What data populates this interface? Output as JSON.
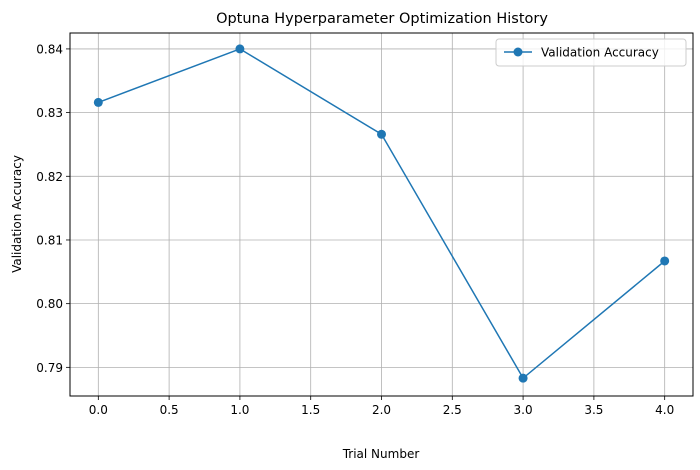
{
  "chart_data": {
    "type": "line",
    "title": "Optuna Hyperparameter Optimization History",
    "xlabel": "Trial Number",
    "ylabel": "Validation Accuracy",
    "xlim": [
      -0.2,
      4.2
    ],
    "ylim": [
      0.7855,
      0.8425
    ],
    "xticks": [
      0.0,
      0.5,
      1.0,
      1.5,
      2.0,
      2.5,
      3.0,
      3.5,
      4.0
    ],
    "xtick_labels": [
      "0.0",
      "0.5",
      "1.0",
      "1.5",
      "2.0",
      "2.5",
      "3.0",
      "3.5",
      "4.0"
    ],
    "yticks": [
      0.79,
      0.8,
      0.81,
      0.82,
      0.83,
      0.84
    ],
    "ytick_labels": [
      "0.79",
      "0.80",
      "0.81",
      "0.82",
      "0.83",
      "0.84"
    ],
    "grid": true,
    "legend_position": "top-right",
    "series": [
      {
        "name": "Validation Accuracy",
        "color": "#1f77b4",
        "marker": "circle",
        "x": [
          0,
          1,
          2,
          3,
          4
        ],
        "y": [
          0.8316,
          0.84,
          0.8266,
          0.7883,
          0.8067
        ]
      }
    ]
  }
}
